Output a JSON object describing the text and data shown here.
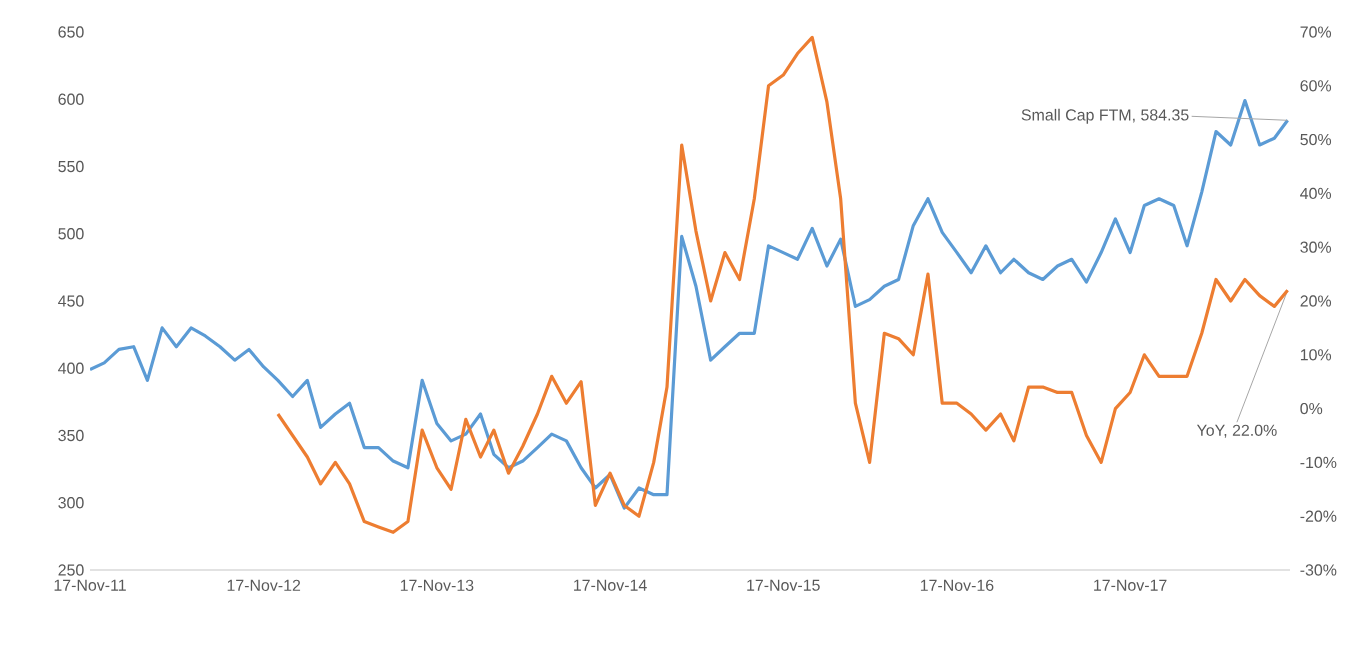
{
  "chart_data": {
    "type": "line",
    "annotations": [
      {
        "text": "Small Cap FTM, 584.35",
        "x": "2018-10-15",
        "y": 584.35
      },
      {
        "text": "YoY, 22.0%",
        "x": "2018-10-15",
        "y": 458
      }
    ],
    "series": [
      {
        "color": "#5b9bd5",
        "x": [
          "2011-11-17",
          "2011-12-17",
          "2012-01-17",
          "2012-02-17",
          "2012-03-17",
          "2012-04-17",
          "2012-05-17",
          "2012-06-17",
          "2012-07-17",
          "2012-08-17",
          "2012-09-17",
          "2012-10-17",
          "2012-11-17",
          "2012-12-17",
          "2013-01-17",
          "2013-02-17",
          "2013-03-17",
          "2013-04-17",
          "2013-05-17",
          "2013-06-17",
          "2013-07-17",
          "2013-08-17",
          "2013-09-17",
          "2013-10-17",
          "2013-11-17",
          "2013-12-17",
          "2014-01-17",
          "2014-02-17",
          "2014-03-17",
          "2014-04-17",
          "2014-05-17",
          "2014-06-17",
          "2014-07-17",
          "2014-08-17",
          "2014-09-17",
          "2014-10-17",
          "2014-11-17",
          "2014-12-17",
          "2015-01-17",
          "2015-02-17",
          "2015-03-17",
          "2015-04-17",
          "2015-05-17",
          "2015-06-17",
          "2015-07-17",
          "2015-08-17",
          "2015-09-17",
          "2015-10-17",
          "2015-11-17",
          "2015-12-17",
          "2016-01-17",
          "2016-02-17",
          "2016-03-17",
          "2016-04-17",
          "2016-05-17",
          "2016-06-17",
          "2016-07-17",
          "2016-08-17",
          "2016-09-17",
          "2016-10-17",
          "2016-11-17",
          "2016-12-17",
          "2017-01-17",
          "2017-02-17",
          "2017-03-17",
          "2017-04-17",
          "2017-05-17",
          "2017-06-17",
          "2017-07-17",
          "2017-08-17",
          "2017-09-17",
          "2017-10-17",
          "2017-11-17",
          "2017-12-17",
          "2018-01-17",
          "2018-02-17",
          "2018-03-17",
          "2018-04-17",
          "2018-05-17",
          "2018-06-17",
          "2018-07-17",
          "2018-08-17",
          "2018-09-17",
          "2018-10-15"
        ],
        "values": [
          399,
          404,
          414,
          416,
          391,
          430,
          416,
          430,
          424,
          416,
          406,
          414,
          401,
          391,
          379,
          391,
          356,
          366,
          374,
          341,
          341,
          331,
          326,
          391,
          359,
          346,
          351,
          366,
          336,
          326,
          331,
          341,
          351,
          346,
          326,
          311,
          321,
          296,
          311,
          306,
          306,
          498,
          461,
          406,
          416,
          426,
          426,
          491,
          486,
          481,
          504,
          476,
          496,
          446,
          451,
          461,
          466,
          506,
          526,
          501,
          486,
          471,
          491,
          471,
          481,
          471,
          466,
          476,
          481,
          464,
          486,
          511,
          486,
          521,
          526,
          521,
          491,
          531,
          576,
          566,
          599,
          566,
          571,
          584.35
        ]
      },
      {
        "color": "#ed7d31",
        "axis": "y2",
        "x": [
          "2012-12-17",
          "2013-01-17",
          "2013-02-17",
          "2013-03-17",
          "2013-04-17",
          "2013-05-17",
          "2013-06-17",
          "2013-07-17",
          "2013-08-17",
          "2013-09-17",
          "2013-10-17",
          "2013-11-17",
          "2013-12-17",
          "2014-01-17",
          "2014-02-17",
          "2014-03-17",
          "2014-04-17",
          "2014-05-17",
          "2014-06-17",
          "2014-07-17",
          "2014-08-17",
          "2014-09-17",
          "2014-10-17",
          "2014-11-17",
          "2014-12-17",
          "2015-01-17",
          "2015-02-17",
          "2015-03-17",
          "2015-04-17",
          "2015-05-17",
          "2015-06-17",
          "2015-07-17",
          "2015-08-17",
          "2015-09-17",
          "2015-10-17",
          "2015-11-17",
          "2015-12-17",
          "2016-01-17",
          "2016-02-17",
          "2016-03-17",
          "2016-04-17",
          "2016-05-17",
          "2016-06-17",
          "2016-07-17",
          "2016-08-17",
          "2016-09-17",
          "2016-10-17",
          "2016-11-17",
          "2016-12-17",
          "2017-01-17",
          "2017-02-17",
          "2017-03-17",
          "2017-04-17",
          "2017-05-17",
          "2017-06-17",
          "2017-07-17",
          "2017-08-17",
          "2017-09-17",
          "2017-10-17",
          "2017-11-17",
          "2017-12-17",
          "2018-01-17",
          "2018-02-17",
          "2018-03-17",
          "2018-04-17",
          "2018-05-17",
          "2018-06-17",
          "2018-07-17",
          "2018-08-17",
          "2018-09-17",
          "2018-10-15"
        ],
        "values": [
          -1,
          -5,
          -9,
          -14,
          -10,
          -14,
          -21,
          -22,
          -23,
          -21,
          -4,
          -11,
          -15,
          -2,
          -9,
          -4,
          -12,
          -7,
          -1,
          6,
          1,
          5,
          -18,
          -12,
          -18,
          -20,
          -10,
          4,
          49,
          33,
          20,
          29,
          24,
          39,
          60,
          62,
          66,
          69,
          57,
          39,
          1,
          -10,
          14,
          13,
          10,
          25,
          1,
          1,
          -1,
          -4,
          -1,
          -6,
          4,
          4,
          3,
          3,
          -5,
          -10,
          0,
          3,
          10,
          6,
          6,
          6,
          14,
          24,
          20,
          24,
          21,
          19,
          22.0
        ]
      }
    ],
    "xlim": [
      "2011-11-17",
      "2018-10-20"
    ],
    "xticks": [
      {
        "value": "2011-11-17",
        "label": "17-Nov-11"
      },
      {
        "value": "2012-11-17",
        "label": "17-Nov-12"
      },
      {
        "value": "2013-11-17",
        "label": "17-Nov-13"
      },
      {
        "value": "2014-11-17",
        "label": "17-Nov-14"
      },
      {
        "value": "2015-11-17",
        "label": "17-Nov-15"
      },
      {
        "value": "2016-11-17",
        "label": "17-Nov-16"
      },
      {
        "value": "2017-11-17",
        "label": "17-Nov-17"
      }
    ],
    "ylim": [
      250,
      650
    ],
    "yticks": [
      250,
      300,
      350,
      400,
      450,
      500,
      550,
      600,
      650
    ],
    "y2lim": [
      -30,
      70
    ],
    "y2ticks": [
      {
        "value": -30,
        "label": "-30%"
      },
      {
        "value": -20,
        "label": "-20%"
      },
      {
        "value": -10,
        "label": "-10%"
      },
      {
        "value": 0,
        "label": "0%"
      },
      {
        "value": 10,
        "label": "10%"
      },
      {
        "value": 20,
        "label": "20%"
      },
      {
        "value": 30,
        "label": "30%"
      },
      {
        "value": 40,
        "label": "40%"
      },
      {
        "value": 50,
        "label": "50%"
      },
      {
        "value": 60,
        "label": "60%"
      },
      {
        "value": 70,
        "label": "70%"
      }
    ],
    "grid": false,
    "marker": "none",
    "line_style": "solid"
  }
}
